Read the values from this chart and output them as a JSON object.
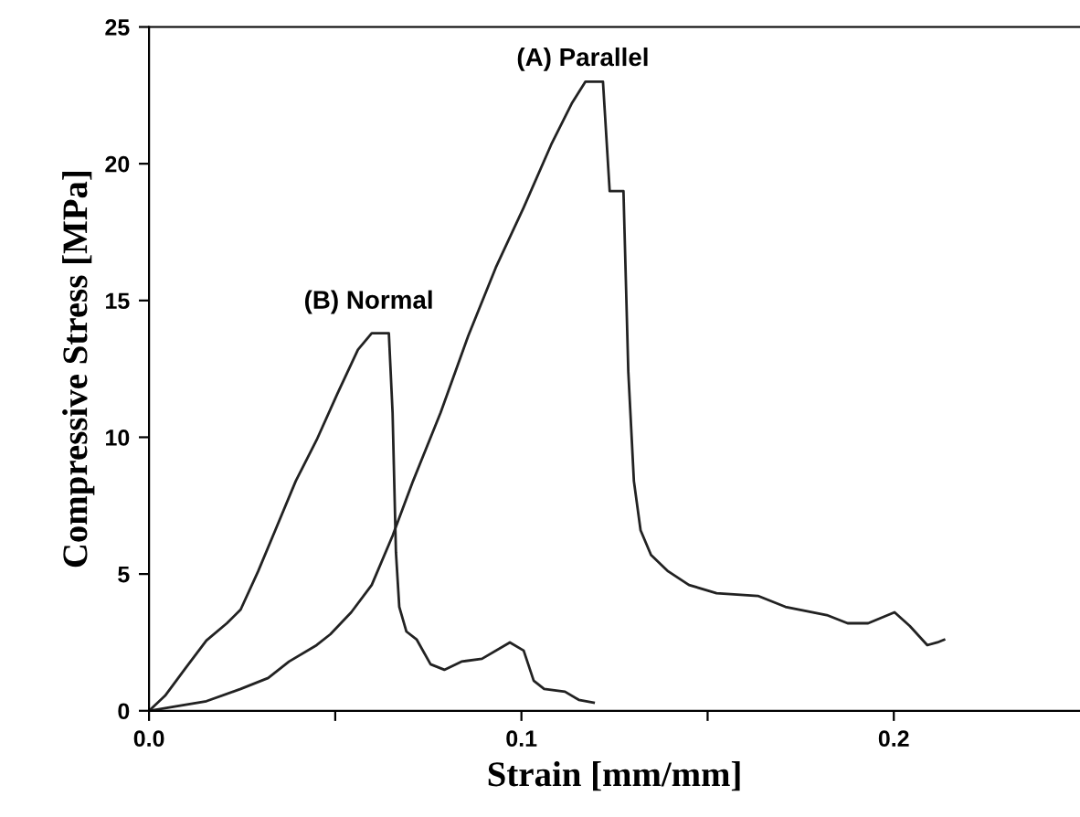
{
  "chart_data": {
    "type": "line",
    "xlabel": "Strain [mm/mm]",
    "ylabel": "Compressive Stress [MPa]",
    "xlim": [
      0,
      0.25
    ],
    "ylim": [
      0,
      25
    ],
    "xticks": [
      {
        "value": 0,
        "label": "0.0"
      },
      {
        "value": 0.05,
        "label": null
      },
      {
        "value": 0.1,
        "label": "0.1"
      },
      {
        "value": 0.15,
        "label": null
      },
      {
        "value": 0.2,
        "label": "0.2"
      }
    ],
    "yticks": [
      0,
      5,
      10,
      15,
      20,
      25
    ],
    "grid": false,
    "legend": false,
    "marker": "none",
    "line_style": "solid",
    "annotations": [
      "(B) Normal",
      "(A) Parallel"
    ],
    "series": [
      {
        "color": "#222222",
        "x": [
          0,
          0.0043,
          0.0098,
          0.0154,
          0.0209,
          0.0246,
          0.0293,
          0.0339,
          0.0394,
          0.045,
          0.0506,
          0.0561,
          0.0598,
          0.0644,
          0.0654,
          0.0663,
          0.0672,
          0.0691,
          0.0719,
          0.0756,
          0.0793,
          0.0839,
          0.0894,
          0.0969,
          0.1006,
          0.1033,
          0.1061,
          0.1117,
          0.1154,
          0.1194
        ],
        "values": [
          0,
          0.55,
          1.56,
          2.57,
          3.2,
          3.7,
          5.1,
          6.6,
          8.4,
          9.9,
          11.6,
          13.2,
          13.8,
          13.8,
          10.9,
          5.8,
          3.8,
          2.9,
          2.6,
          1.7,
          1.5,
          1.8,
          1.9,
          2.5,
          2.2,
          1.1,
          0.8,
          0.7,
          0.4,
          0.3
        ]
      },
      {
        "color": "#222222",
        "x": [
          0,
          0.008,
          0.0154,
          0.0246,
          0.032,
          0.0376,
          0.045,
          0.0487,
          0.0543,
          0.0598,
          0.0654,
          0.0709,
          0.0783,
          0.0857,
          0.0931,
          0.1006,
          0.108,
          0.1135,
          0.1172,
          0.1219,
          0.1237,
          0.1274,
          0.1287,
          0.1302,
          0.132,
          0.1348,
          0.1394,
          0.145,
          0.1524,
          0.1635,
          0.1709,
          0.182,
          0.1876,
          0.1931,
          0.2002,
          0.2043,
          0.209,
          0.2117,
          0.2135
        ],
        "values": [
          0,
          0.18,
          0.35,
          0.8,
          1.2,
          1.8,
          2.4,
          2.8,
          3.6,
          4.6,
          6.4,
          8.4,
          10.9,
          13.7,
          16.2,
          18.4,
          20.7,
          22.2,
          23.0,
          23.0,
          19.0,
          19.0,
          12.4,
          8.4,
          6.6,
          5.7,
          5.1,
          4.6,
          4.3,
          4.2,
          3.8,
          3.5,
          3.2,
          3.2,
          3.6,
          3.1,
          2.4,
          2.5,
          2.6
        ]
      }
    ]
  }
}
